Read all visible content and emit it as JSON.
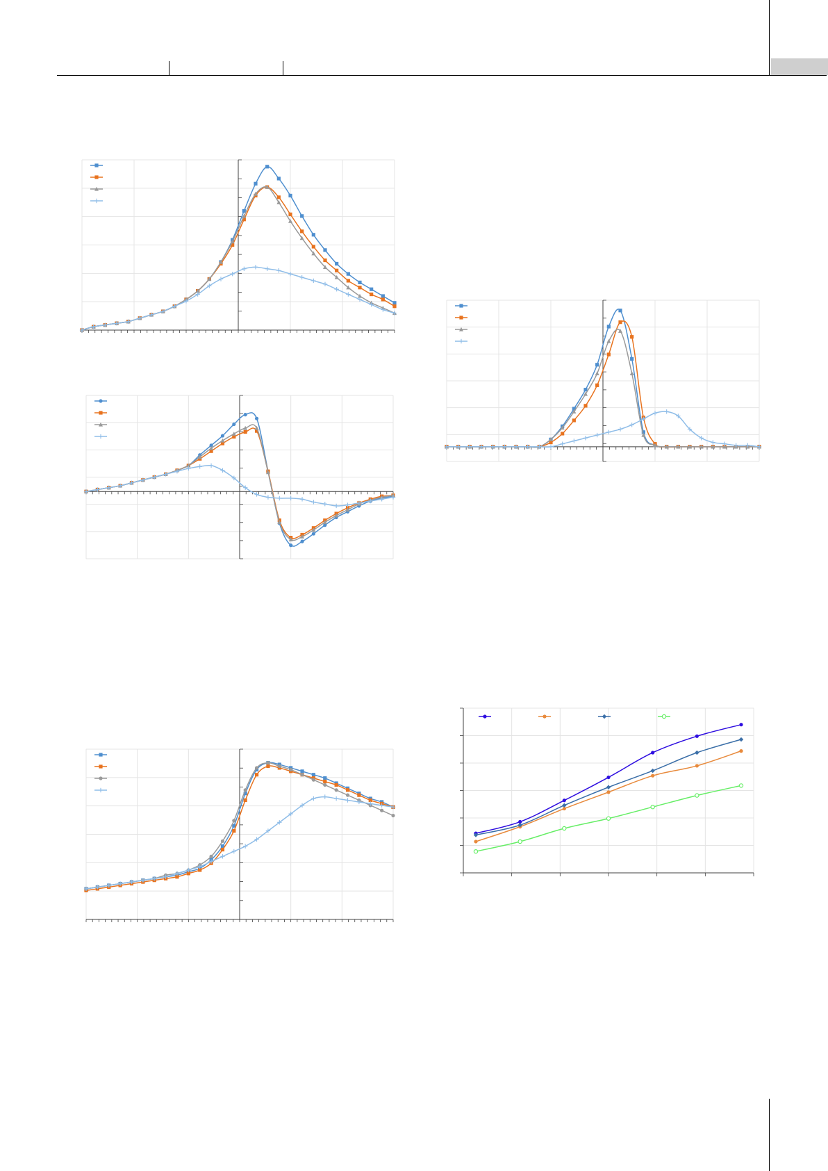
{
  "page": {
    "header": {
      "labels": []
    },
    "footer": {
      "page_number": ""
    }
  },
  "chart_data": [
    {
      "type": "line",
      "title": "",
      "xlabel": "",
      "ylabel": "",
      "x_range": [
        -30,
        30
      ],
      "ylim": [
        0,
        1
      ],
      "grid": true,
      "legend": "top-left",
      "series": [
        {
          "name": "",
          "color": "#4f8fcf",
          "marker": "square",
          "y": [
            0.0,
            0.02,
            0.03,
            0.04,
            0.05,
            0.07,
            0.09,
            0.11,
            0.14,
            0.18,
            0.23,
            0.3,
            0.4,
            0.53,
            0.7,
            0.86,
            0.96,
            0.89,
            0.79,
            0.67,
            0.56,
            0.47,
            0.39,
            0.33,
            0.28,
            0.24,
            0.2,
            0.16
          ]
        },
        {
          "name": "",
          "color": "#e8731f",
          "marker": "square",
          "y": [
            0.0,
            0.02,
            0.03,
            0.04,
            0.05,
            0.07,
            0.09,
            0.11,
            0.14,
            0.18,
            0.23,
            0.3,
            0.39,
            0.5,
            0.65,
            0.79,
            0.84,
            0.78,
            0.68,
            0.58,
            0.49,
            0.41,
            0.35,
            0.29,
            0.25,
            0.21,
            0.18,
            0.14
          ]
        },
        {
          "name": "",
          "color": "#9a9a9a",
          "marker": "triangle",
          "y": [
            0.0,
            0.02,
            0.03,
            0.04,
            0.05,
            0.07,
            0.09,
            0.11,
            0.14,
            0.18,
            0.23,
            0.3,
            0.4,
            0.52,
            0.67,
            0.8,
            0.84,
            0.75,
            0.64,
            0.54,
            0.45,
            0.37,
            0.31,
            0.25,
            0.2,
            0.16,
            0.13,
            0.1
          ]
        },
        {
          "name": "",
          "color": "#8fbde8",
          "marker": "plus",
          "y": [
            0.0,
            0.02,
            0.03,
            0.04,
            0.05,
            0.07,
            0.09,
            0.11,
            0.14,
            0.17,
            0.21,
            0.26,
            0.3,
            0.33,
            0.36,
            0.37,
            0.36,
            0.35,
            0.33,
            0.31,
            0.29,
            0.27,
            0.24,
            0.21,
            0.18,
            0.15,
            0.12,
            0.1
          ]
        }
      ]
    },
    {
      "type": "line",
      "title": "",
      "xlabel": "",
      "ylabel": "",
      "x_range": [
        -30,
        30
      ],
      "ylim": [
        -0.7,
        1
      ],
      "grid": true,
      "legend": "top-left",
      "series": [
        {
          "name": "",
          "color": "#4f8fcf",
          "marker": "circle",
          "y": [
            0.0,
            0.02,
            0.04,
            0.06,
            0.09,
            0.12,
            0.15,
            0.18,
            0.22,
            0.27,
            0.38,
            0.48,
            0.58,
            0.7,
            0.8,
            0.76,
            0.21,
            -0.33,
            -0.56,
            -0.52,
            -0.44,
            -0.35,
            -0.27,
            -0.21,
            -0.15,
            -0.1,
            -0.07,
            -0.05
          ]
        },
        {
          "name": "",
          "color": "#e8731f",
          "marker": "square",
          "y": [
            0.0,
            0.02,
            0.04,
            0.06,
            0.09,
            0.12,
            0.15,
            0.18,
            0.22,
            0.27,
            0.34,
            0.42,
            0.5,
            0.57,
            0.62,
            0.63,
            0.21,
            -0.3,
            -0.48,
            -0.45,
            -0.38,
            -0.3,
            -0.23,
            -0.17,
            -0.12,
            -0.08,
            -0.05,
            -0.04
          ]
        },
        {
          "name": "",
          "color": "#9a9a9a",
          "marker": "triangle",
          "y": [
            0.0,
            0.02,
            0.04,
            0.06,
            0.09,
            0.12,
            0.15,
            0.18,
            0.22,
            0.27,
            0.36,
            0.45,
            0.53,
            0.6,
            0.66,
            0.66,
            0.2,
            -0.32,
            -0.5,
            -0.47,
            -0.4,
            -0.32,
            -0.25,
            -0.19,
            -0.13,
            -0.09,
            -0.06,
            -0.04
          ]
        },
        {
          "name": "",
          "color": "#8fbde8",
          "marker": "plus",
          "y": [
            0.0,
            0.02,
            0.04,
            0.06,
            0.09,
            0.12,
            0.15,
            0.18,
            0.21,
            0.24,
            0.26,
            0.27,
            0.22,
            0.14,
            0.04,
            -0.03,
            -0.06,
            -0.07,
            -0.07,
            -0.08,
            -0.11,
            -0.13,
            -0.15,
            -0.14,
            -0.12,
            -0.1,
            -0.08,
            -0.06
          ]
        }
      ]
    },
    {
      "type": "line",
      "title": "",
      "xlabel": "",
      "ylabel": "",
      "x_range": [
        -30,
        30
      ],
      "ylim": [
        0,
        1
      ],
      "grid": true,
      "legend": "top-left",
      "series": [
        {
          "name": "",
          "color": "#4f8fcf",
          "marker": "square",
          "y": [
            0.18,
            0.19,
            0.2,
            0.21,
            0.22,
            0.23,
            0.24,
            0.25,
            0.26,
            0.28,
            0.3,
            0.35,
            0.43,
            0.55,
            0.74,
            0.88,
            0.92,
            0.91,
            0.89,
            0.87,
            0.85,
            0.83,
            0.8,
            0.77,
            0.74,
            0.71,
            0.69,
            0.66
          ]
        },
        {
          "name": "",
          "color": "#e8731f",
          "marker": "square",
          "y": [
            0.17,
            0.18,
            0.19,
            0.2,
            0.21,
            0.22,
            0.23,
            0.24,
            0.25,
            0.27,
            0.29,
            0.33,
            0.41,
            0.52,
            0.7,
            0.85,
            0.9,
            0.89,
            0.87,
            0.85,
            0.83,
            0.81,
            0.79,
            0.76,
            0.73,
            0.7,
            0.68,
            0.66
          ]
        },
        {
          "name": "",
          "color": "#9a9a9a",
          "marker": "circle",
          "y": [
            0.18,
            0.19,
            0.2,
            0.21,
            0.22,
            0.23,
            0.24,
            0.26,
            0.27,
            0.29,
            0.32,
            0.37,
            0.46,
            0.58,
            0.76,
            0.89,
            0.92,
            0.9,
            0.88,
            0.85,
            0.82,
            0.79,
            0.76,
            0.73,
            0.7,
            0.67,
            0.64,
            0.61
          ]
        },
        {
          "name": "",
          "color": "#8fbde8",
          "marker": "plus",
          "y": [
            0.18,
            0.19,
            0.2,
            0.21,
            0.22,
            0.23,
            0.24,
            0.25,
            0.27,
            0.29,
            0.31,
            0.34,
            0.37,
            0.4,
            0.43,
            0.47,
            0.52,
            0.57,
            0.62,
            0.67,
            0.71,
            0.72,
            0.71,
            0.7,
            0.69,
            0.68,
            0.67,
            0.66
          ]
        }
      ]
    },
    {
      "type": "line",
      "title": "",
      "xlabel": "",
      "ylabel": "",
      "x_range": [
        -30,
        30
      ],
      "ylim": [
        -0.1,
        1
      ],
      "grid": true,
      "legend": "top-left",
      "series": [
        {
          "name": "",
          "color": "#4f8fcf",
          "marker": "square",
          "y": [
            0.0,
            0.0,
            0.0,
            0.0,
            0.0,
            0.0,
            0.0,
            0.0,
            0.0,
            0.05,
            0.14,
            0.26,
            0.39,
            0.56,
            0.82,
            0.93,
            0.6,
            0.1,
            0.01,
            0.0,
            0.0,
            0.0,
            0.0,
            0.0,
            0.0,
            0.0,
            0.0,
            0.0
          ]
        },
        {
          "name": "",
          "color": "#e8731f",
          "marker": "square",
          "y": [
            0.0,
            0.0,
            0.0,
            0.0,
            0.0,
            0.0,
            0.0,
            0.0,
            0.0,
            0.03,
            0.09,
            0.18,
            0.28,
            0.42,
            0.63,
            0.85,
            0.75,
            0.2,
            0.02,
            0.0,
            0.0,
            0.0,
            0.0,
            0.0,
            0.0,
            0.0,
            0.0,
            0.0
          ]
        },
        {
          "name": "",
          "color": "#9a9a9a",
          "marker": "triangle",
          "y": [
            0.0,
            0.0,
            0.0,
            0.0,
            0.0,
            0.0,
            0.0,
            0.0,
            0.0,
            0.05,
            0.13,
            0.24,
            0.36,
            0.5,
            0.72,
            0.79,
            0.5,
            0.08,
            0.01,
            0.0,
            0.0,
            0.0,
            0.0,
            0.0,
            0.0,
            0.0,
            0.0,
            0.0
          ]
        },
        {
          "name": "",
          "color": "#8fbde8",
          "marker": "plus",
          "y": [
            0.0,
            0.0,
            0.0,
            0.0,
            0.0,
            0.0,
            0.0,
            0.0,
            0.0,
            0.0,
            0.02,
            0.04,
            0.06,
            0.08,
            0.1,
            0.12,
            0.15,
            0.19,
            0.23,
            0.24,
            0.21,
            0.12,
            0.06,
            0.03,
            0.02,
            0.01,
            0.01,
            0.0
          ]
        }
      ]
    },
    {
      "type": "line",
      "title": "",
      "xlabel": "",
      "ylabel": "",
      "ylim": [
        0,
        1
      ],
      "grid": true,
      "legend": "top",
      "series": [
        {
          "name": "",
          "color": "#2e0ee0",
          "marker": "circle",
          "y": [
            0.24,
            0.31,
            0.44,
            0.58,
            0.73,
            0.83,
            0.9
          ]
        },
        {
          "name": "",
          "color": "#e88a3c",
          "marker": "circle",
          "y": [
            0.19,
            0.28,
            0.39,
            0.49,
            0.59,
            0.65,
            0.74
          ]
        },
        {
          "name": "",
          "color": "#3b6fa8",
          "marker": "diamond",
          "y": [
            0.23,
            0.29,
            0.41,
            0.52,
            0.62,
            0.73,
            0.81
          ]
        },
        {
          "name": "",
          "color": "#66ee66",
          "marker": "open-circle",
          "y": [
            0.13,
            0.19,
            0.27,
            0.33,
            0.4,
            0.47,
            0.53
          ]
        }
      ]
    }
  ]
}
